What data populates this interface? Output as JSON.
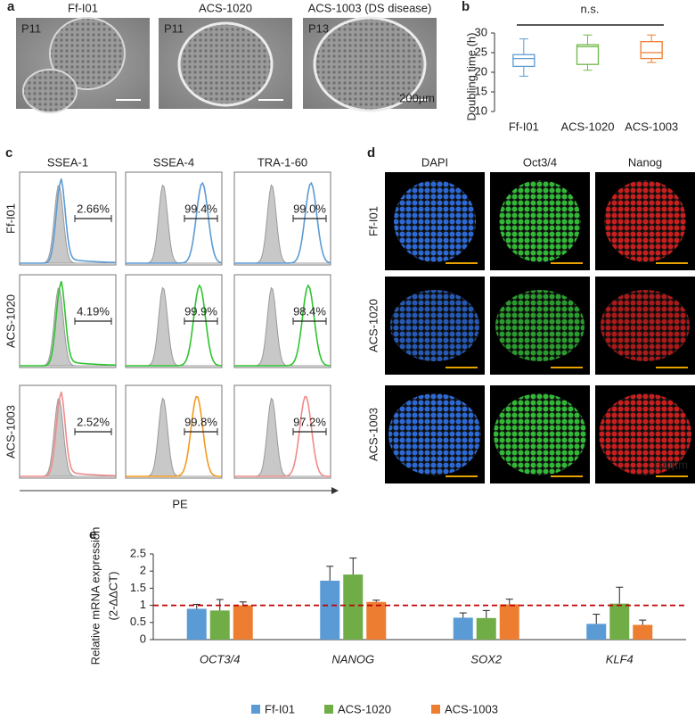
{
  "panel_labels": [
    "a",
    "b",
    "c",
    "d",
    "e"
  ],
  "microscopy": {
    "titles": [
      "Ff-I01",
      "ACS-1020",
      "ACS-1003 (DS disease)"
    ],
    "passages": [
      "P11",
      "P11",
      "P13"
    ],
    "scale_bar": "200µm"
  },
  "flow": {
    "columns": [
      "SSEA-1",
      "SSEA-4",
      "TRA-1-60"
    ],
    "rows": [
      "Ff-I01",
      "ACS-1020",
      "ACS-1003"
    ],
    "percent": [
      [
        "2.66%",
        "99.4%",
        "99.0%"
      ],
      [
        "4.19%",
        "99.9%",
        "98.4%"
      ],
      [
        "2.52%",
        "99.8%",
        "97.2%"
      ]
    ],
    "row_colors": [
      "#5b9bd5",
      "#2fc42f",
      "#f08a8a"
    ],
    "axis_label": "PE"
  },
  "immunostaining": {
    "channels": [
      "DAPI",
      "Oct3/4",
      "Nanog"
    ],
    "channel_colors": [
      "#2f6fe0",
      "#35c23a",
      "#d42020"
    ],
    "rows": [
      "Ff-I01",
      "ACS-1020",
      "ACS-1003"
    ],
    "scale_bar": "100µm"
  },
  "chart_data": [
    {
      "type": "box",
      "y_label": "Doubling time (h)",
      "categories": [
        "Ff-I01",
        "ACS-1020",
        "ACS-1003"
      ],
      "colors": [
        "#5b9bd5",
        "#70b84a",
        "#ed7d31"
      ],
      "min": [
        19,
        20.5,
        22.5
      ],
      "q1": [
        21.5,
        22,
        23.5
      ],
      "median": [
        23.5,
        26.5,
        25
      ],
      "q3": [
        24.5,
        27,
        27.8
      ],
      "max": [
        28.5,
        29.5,
        29.5
      ],
      "ylim": [
        10,
        30
      ],
      "yticks": [
        10,
        15,
        20,
        25,
        30
      ],
      "annotation": "n.s."
    },
    {
      "type": "bar",
      "y_label": [
        "Relative mRNA expression",
        "(2-ΔΔCT)"
      ],
      "categories": [
        "OCT3/4",
        "NANOG",
        "SOX2",
        "KLF4"
      ],
      "series": [
        {
          "name": "Ff-I01",
          "color": "#5b9bd5",
          "values": [
            0.9,
            1.72,
            0.64,
            0.46
          ],
          "errors": [
            0.13,
            0.42,
            0.14,
            0.28
          ]
        },
        {
          "name": "ACS-1020",
          "color": "#70ad47",
          "values": [
            0.85,
            1.9,
            0.63,
            1.05
          ],
          "errors": [
            0.32,
            0.48,
            0.22,
            0.48
          ]
        },
        {
          "name": "ACS-1003",
          "color": "#ed7d31",
          "values": [
            1.0,
            1.1,
            1.03,
            0.43
          ],
          "errors": [
            0.1,
            0.05,
            0.15,
            0.14
          ]
        }
      ],
      "ylim": [
        0,
        2.5
      ],
      "yticks": [
        0,
        0.5,
        1,
        1.5,
        2,
        2.5
      ],
      "reference_line": 1,
      "reference_color": "#c00000",
      "legend": "bottom"
    }
  ]
}
